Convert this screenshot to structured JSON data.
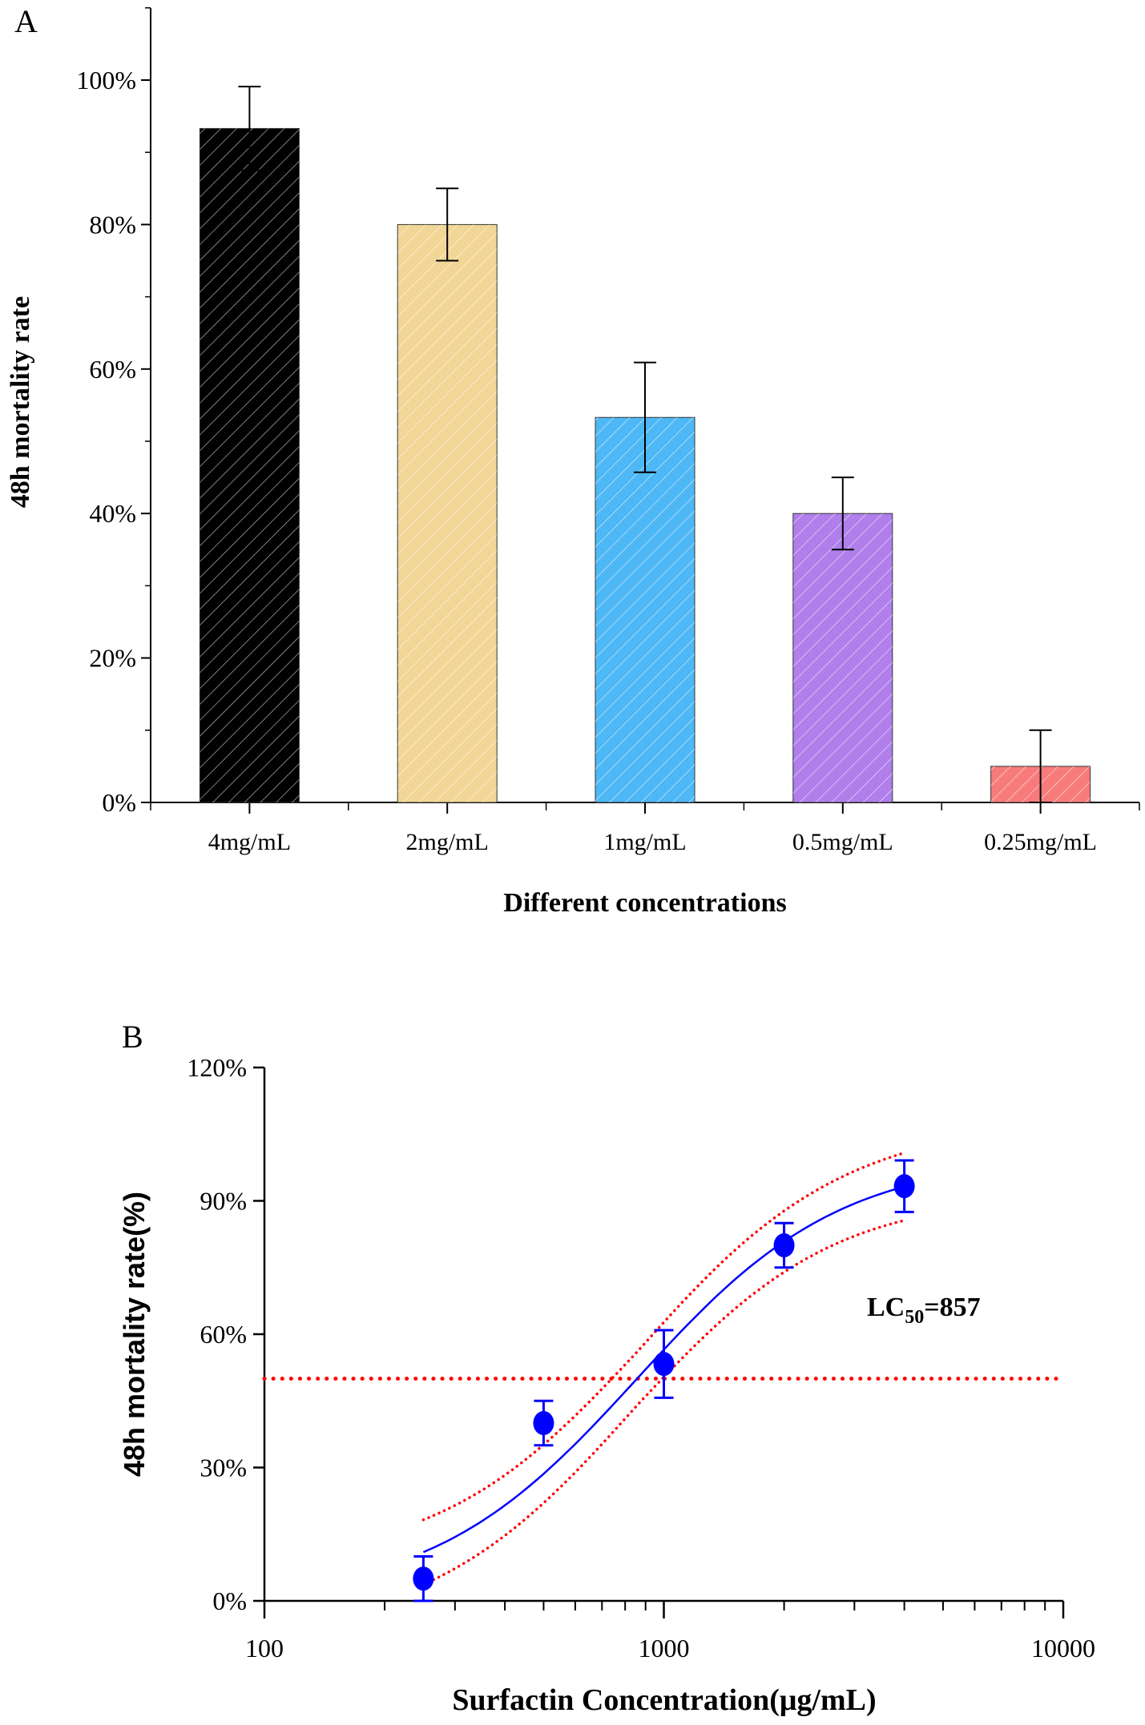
{
  "chart_data": [
    {
      "type": "bar",
      "panel_label": "A",
      "title": "",
      "xlabel": "Different concentrations",
      "ylabel": "48h mortality rate",
      "categories": [
        "4mg/mL",
        "2mg/mL",
        "1mg/mL",
        "0.5mg/mL",
        "0.25mg/mL"
      ],
      "values": [
        93.3,
        80,
        53.3,
        40,
        5
      ],
      "errors": [
        5.8,
        5,
        7.6,
        5,
        5
      ],
      "colors": [
        "#000000",
        "#F2D696",
        "#4DB8F5",
        "#B07FEB",
        "#F87B7B"
      ],
      "ylim": [
        0,
        110
      ],
      "yticks": [
        0,
        20,
        40,
        60,
        80,
        100
      ],
      "ytick_labels": [
        "0%",
        "20%",
        "40%",
        "60%",
        "80%",
        "100%"
      ],
      "grid": false
    },
    {
      "type": "scatter",
      "panel_label": "B",
      "xlabel": "Surfactin Concentration(μg/mL)",
      "ylabel": "48h mortality rate(%)",
      "xscale": "log",
      "xlim": [
        100,
        10000
      ],
      "ylim": [
        0,
        120
      ],
      "xticks": [
        100,
        1000,
        10000
      ],
      "xtick_labels": [
        "100",
        "1000",
        "10000"
      ],
      "yticks": [
        0,
        30,
        60,
        90,
        120
      ],
      "ytick_labels": [
        "0%",
        "30%",
        "60%",
        "90%",
        "120%"
      ],
      "x": [
        250,
        500,
        1000,
        2000,
        4000
      ],
      "y": [
        5,
        40,
        53.3,
        80,
        93.3
      ],
      "errors": [
        5,
        5,
        7.6,
        5,
        5.8
      ],
      "fit": {
        "type": "logistic",
        "lc50": 857,
        "hill": 1.7,
        "range": [
          250,
          4000
        ],
        "band_halfwidth": 6
      },
      "reference_line_y": 50,
      "annotation": {
        "prefix": "LC",
        "subscript": "50",
        "suffix": "=857"
      },
      "point_color": "#0000FF",
      "band_color": "#FF0000",
      "grid": false
    }
  ]
}
